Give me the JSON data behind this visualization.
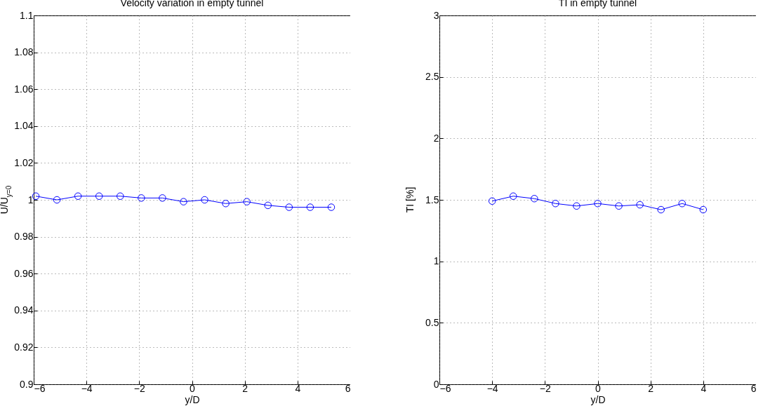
{
  "chart_data": [
    {
      "type": "line",
      "title": "Velocity variation in empty tunnel",
      "xlabel": "y/D",
      "ylabel": "U/U$_{y=0}$",
      "x": [
        -5.92,
        -5.12,
        -4.32,
        -3.52,
        -2.72,
        -1.92,
        -1.12,
        -0.32,
        0.48,
        1.28,
        2.08,
        2.88,
        3.68,
        4.48,
        5.28
      ],
      "series": [
        {
          "color": "#0000ff",
          "values": [
            1.002,
            1.0,
            1.002,
            1.002,
            1.002,
            1.001,
            1.001,
            0.999,
            1.0,
            0.998,
            0.999,
            0.997,
            0.996,
            0.996,
            0.996
          ]
        }
      ],
      "xlim": [
        -6,
        6
      ],
      "xticks": [
        -6,
        -4,
        -2,
        0,
        2,
        4,
        6
      ],
      "ylim": [
        0.9,
        1.1
      ],
      "yticks": [
        0.9,
        0.92,
        0.94,
        0.96,
        0.98,
        1,
        1.02,
        1.04,
        1.06,
        1.08,
        1.1
      ],
      "grid": true,
      "marker": "circle",
      "line_style": "solid"
    },
    {
      "type": "line",
      "title": "TI in empty tunnel",
      "xlabel": "y/D",
      "ylabel": "TI [%]",
      "x": [
        -4,
        -3.2,
        -2.4,
        -1.6,
        -0.8,
        0,
        0.8,
        1.6,
        2.4,
        3.2,
        4
      ],
      "series": [
        {
          "color": "#0000ff",
          "values": [
            1.49,
            1.53,
            1.51,
            1.47,
            1.45,
            1.47,
            1.45,
            1.46,
            1.42,
            1.47,
            1.42
          ]
        }
      ],
      "xlim": [
        -6,
        6
      ],
      "xticks": [
        -6,
        -4,
        -2,
        0,
        2,
        4,
        6
      ],
      "ylim": [
        0,
        3
      ],
      "yticks": [
        0,
        0.5,
        1,
        1.5,
        2,
        2.5,
        3
      ],
      "grid": true,
      "marker": "circle",
      "line_style": "solid"
    }
  ]
}
